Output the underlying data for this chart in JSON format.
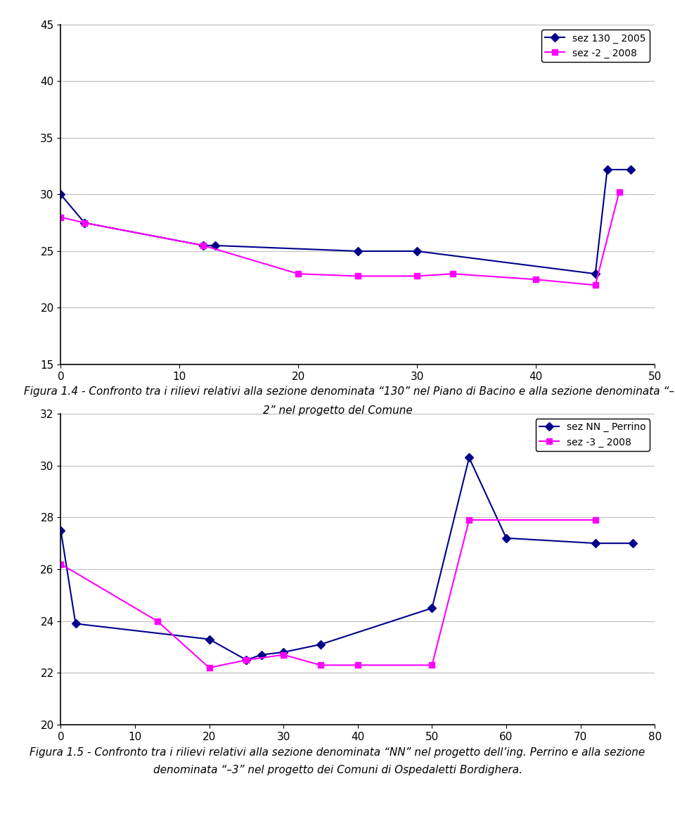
{
  "chart1": {
    "series1": {
      "label": "sez 130 _ 2005",
      "color": "#00008B",
      "marker": "D",
      "x": [
        0,
        2,
        12,
        13,
        25,
        30,
        45,
        46,
        48
      ],
      "y": [
        30.0,
        27.5,
        25.5,
        25.5,
        25.0,
        25.0,
        23.0,
        32.2,
        32.2
      ]
    },
    "series2": {
      "label": "sez -2 _ 2008",
      "color": "#FF00FF",
      "marker": "s",
      "x": [
        0,
        2,
        12,
        20,
        25,
        30,
        33,
        40,
        45,
        47
      ],
      "y": [
        28.0,
        27.5,
        25.5,
        23.0,
        22.8,
        22.8,
        23.0,
        22.5,
        22.0,
        30.2
      ]
    },
    "ylim": [
      15,
      45
    ],
    "xlim": [
      0,
      50
    ],
    "yticks": [
      15,
      20,
      25,
      30,
      35,
      40,
      45
    ],
    "xticks": [
      0,
      10,
      20,
      30,
      40,
      50
    ],
    "caption_line1": "Figura 1.4 - Confronto tra i rilievi relativi alla sezione denominata “130” nel Piano di Bacino e alla sezione denominata “–",
    "caption_line2": "2” nel progetto del Comune"
  },
  "chart2": {
    "series1": {
      "label": "sez NN _ Perrino",
      "color": "#00008B",
      "marker": "D",
      "x": [
        0,
        2,
        20,
        25,
        27,
        30,
        35,
        50,
        55,
        60,
        72,
        77
      ],
      "y": [
        27.5,
        23.9,
        23.3,
        22.5,
        22.7,
        22.8,
        23.1,
        24.5,
        30.3,
        27.2,
        27.0,
        27.0
      ]
    },
    "series2": {
      "label": "sez -3 _ 2008",
      "color": "#FF00FF",
      "marker": "s",
      "x": [
        0,
        13,
        20,
        25,
        30,
        35,
        40,
        50,
        55,
        72
      ],
      "y": [
        26.2,
        24.0,
        22.2,
        22.5,
        22.7,
        22.3,
        22.3,
        22.3,
        27.9,
        27.9
      ]
    },
    "ylim": [
      20,
      32
    ],
    "xlim": [
      0,
      80
    ],
    "yticks": [
      20,
      22,
      24,
      26,
      28,
      30,
      32
    ],
    "xticks": [
      0,
      10,
      20,
      30,
      40,
      50,
      60,
      70,
      80
    ],
    "caption_line1": "Figura 1.5 - Confronto tra i rilievi relativi alla sezione denominata “NN” nel progetto dell’ing. Perrino e alla sezione",
    "caption_line2": "denominata “–3” nel progetto dei Comuni di Ospedaletti Bordighera."
  },
  "bg_color": "#FFFFFF",
  "grid_color": "#BEBEBE",
  "axis_color": "#000000",
  "legend_fontsize": 10,
  "tick_fontsize": 11,
  "caption_fontsize": 11
}
